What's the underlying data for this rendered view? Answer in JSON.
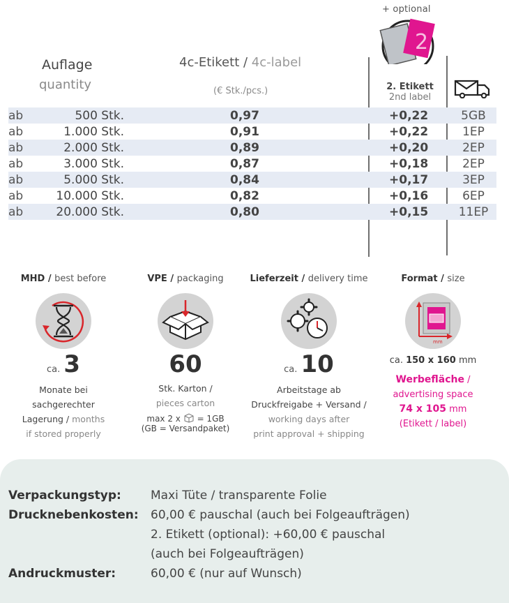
{
  "header": {
    "optional": "+ optional",
    "auflage": "Auflage",
    "quantity": "quantity",
    "label_de": "4c-Etikett",
    "label_sep": " / ",
    "label_en": "4c-label",
    "unit": "(€ Stk./pcs.)",
    "second_de": "2. Etikett",
    "second_en": "2nd label"
  },
  "rows": [
    {
      "ab": "ab",
      "qty": "500 Stk.",
      "price": "0,97",
      "plus": "+0,22",
      "ship": "5GB"
    },
    {
      "ab": "ab",
      "qty": "1.000 Stk.",
      "price": "0,91",
      "plus": "+0,22",
      "ship": "1EP"
    },
    {
      "ab": "ab",
      "qty": "2.000 Stk.",
      "price": "0,89",
      "plus": "+0,20",
      "ship": "2EP"
    },
    {
      "ab": "ab",
      "qty": "3.000 Stk.",
      "price": "0,87",
      "plus": "+0,18",
      "ship": "2EP"
    },
    {
      "ab": "ab",
      "qty": "5.000 Stk.",
      "price": "0,84",
      "plus": "+0,17",
      "ship": "3EP"
    },
    {
      "ab": "ab",
      "qty": "10.000 Stk.",
      "price": "0,82",
      "plus": "+0,16",
      "ship": "6EP"
    },
    {
      "ab": "ab",
      "qty": "20.000 Stk.",
      "price": "0,80",
      "plus": "+0,15",
      "ship": "11EP"
    }
  ],
  "mhd": {
    "title": "MHD",
    "title_en": "best before",
    "ca": "ca.",
    "value": "3",
    "line1": "Monate bei",
    "line2": "sachgerechter",
    "line3": "Lagerung",
    "line3_en": "months",
    "line4_en": "if stored properly"
  },
  "vpe": {
    "title": "VPE",
    "title_en": "packaging",
    "value": "60",
    "line1": "Stk. Karton /",
    "line2_en": "pieces carton",
    "max_pre": "max 2 x",
    "max_post": "= 1GB",
    "gb_note": "(GB = Versandpaket)"
  },
  "delivery": {
    "title": "Lieferzeit",
    "title_en": "delivery time",
    "ca": "ca.",
    "value": "10",
    "line1": "Arbeitstage ab",
    "line2": "Druckfreigabe + Versand /",
    "line3_en": "working days after",
    "line4_en": "print approval + shipping"
  },
  "format": {
    "title": "Format",
    "title_en": "size",
    "mm_label": "mm",
    "size_ca": "ca.",
    "size": "150 x 160",
    "size_unit": "mm",
    "adv_de": "Werbefläche",
    "adv_en": "advertising space",
    "adv_size": "74 x 105",
    "adv_unit": "mm",
    "adv_note": "(Etikett / label)"
  },
  "specs": [
    {
      "key": "Verpackungstyp:",
      "value": "Maxi Tüte / transparente Folie"
    },
    {
      "key": "Drucknebenkosten:",
      "value": "60,00 € pauschal (auch bei Folgeaufträgen)"
    },
    {
      "key": "",
      "value": "2. Etikett (optional): +60,00 € pauschal"
    },
    {
      "key": "",
      "value": "(auch bei Folgeaufträgen)"
    },
    {
      "key": "Andruckmuster:",
      "value": "60,00 € (nur auf Wunsch)"
    }
  ],
  "colors": {
    "accent": "#e0168f",
    "row_shade": "#e6ebf4",
    "panel": "#e7eeec",
    "icon_bg": "#d3d3d3",
    "alert": "#d9262b"
  }
}
